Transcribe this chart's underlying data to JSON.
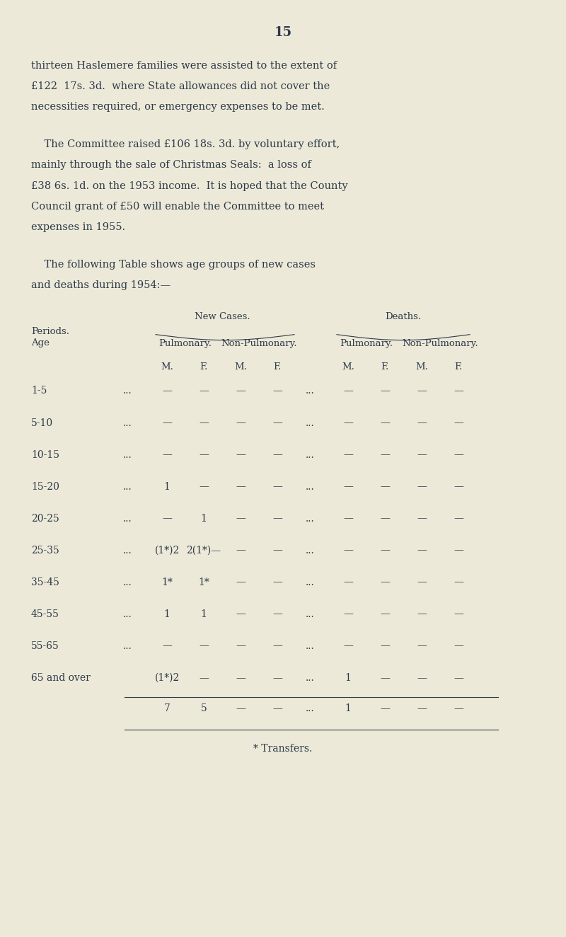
{
  "page_number": "15",
  "bg_color": "#ede9d8",
  "text_color": "#2d3a4a",
  "paragraph1": "thirteen Haslemere families were assisted to the extent of\n£122  17s. 3d.  where State allowances did not cover the\nnecessities required, or emergency expenses to be met.",
  "paragraph2": "    The Committee raised £106 18s. 3d. by voluntary effort,\nmainly through the sale of Christmas Seals:  a loss of\n£38 6s. 1d. on the 1953 income.  It is hoped that the County\nCouncil grant of £50 will enable the Committee to meet\nexpenses in 1955.",
  "paragraph3": "    The following Table shows age groups of new cases\nand deaths during 1954:—",
  "table": {
    "age_periods": [
      "1-5",
      "5-10",
      "10-15",
      "15-20",
      "20-25",
      "25-35",
      "35-45",
      "45-55",
      "55-65",
      "65 and over"
    ],
    "new_cases_pul_m": [
      "—",
      "—",
      "—",
      "1",
      "—",
      "(1*)2",
      "1*",
      "1",
      "—",
      "(1*)2"
    ],
    "new_cases_pul_f": [
      "—",
      "—",
      "—",
      "—",
      "1",
      "2(1*)—",
      "1*",
      "1",
      "—",
      "—"
    ],
    "new_cases_nonpul_m": [
      "—",
      "—",
      "—",
      "—",
      "—",
      "—",
      "—",
      "—",
      "—",
      "—"
    ],
    "new_cases_nonpul_f": [
      "—",
      "—",
      "—",
      "—",
      "—",
      "—",
      "—",
      "—",
      "—",
      "—"
    ],
    "deaths_pul_m": [
      "—",
      "—",
      "—",
      "—",
      "—",
      "—",
      "—",
      "—",
      "—",
      "1"
    ],
    "deaths_pul_f": [
      "—",
      "—",
      "—",
      "—",
      "—",
      "—",
      "—",
      "—",
      "—",
      "—"
    ],
    "deaths_nonpul_m": [
      "—",
      "—",
      "—",
      "—",
      "—",
      "—",
      "—",
      "—",
      "—",
      "—"
    ],
    "deaths_nonpul_f": [
      "—",
      "—",
      "—",
      "—",
      "—",
      "—",
      "—",
      "—",
      "—",
      "—"
    ],
    "totals_new_pul_m": "7",
    "totals_new_pul_f": "5",
    "totals_new_nonpul_m": "—",
    "totals_new_nonpul_f": "—",
    "totals_deaths_pul_m": "1",
    "totals_deaths_pul_f": "—",
    "totals_deaths_nonpul_m": "—",
    "totals_deaths_nonpul_f": "—"
  },
  "footnote": "* Transfers."
}
